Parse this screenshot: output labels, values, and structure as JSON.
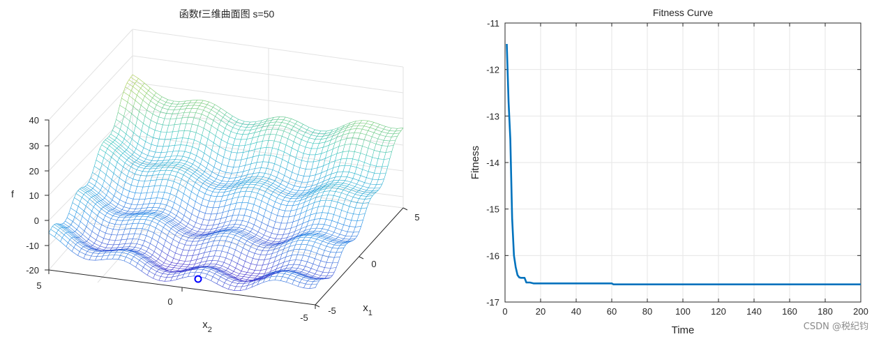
{
  "watermark": "CSDN @税纪钧",
  "chart_data": [
    {
      "type": "surface",
      "title": "函数f三维曲面图 s=50",
      "xlabel_main": "x",
      "xlabel_sub": "1",
      "ylabel_main": "x",
      "ylabel_sub": "2",
      "zlabel": "f",
      "x1_ticks": [
        "5",
        "0",
        "-5"
      ],
      "x2_ticks": [
        "5",
        "0",
        "-5"
      ],
      "z_ticks": [
        "40",
        "30",
        "20",
        "10",
        "0",
        "-10",
        "-20"
      ],
      "zlim": [
        -20,
        40
      ],
      "marker": "optimum (circle)"
    },
    {
      "type": "line",
      "title": "Fitness Curve",
      "xlabel": "Time",
      "ylabel": "Fitness",
      "xlim": [
        0,
        200
      ],
      "ylim": [
        -17,
        -11
      ],
      "xticks": [
        "0",
        "20",
        "40",
        "60",
        "80",
        "100",
        "120",
        "140",
        "160",
        "180",
        "200"
      ],
      "yticks": [
        "-11",
        "-12",
        "-13",
        "-14",
        "-15",
        "-16",
        "-17"
      ],
      "series": [
        {
          "name": "fitness",
          "color": "#0072BD",
          "x": [
            1,
            2,
            3,
            4,
            5,
            6,
            7,
            8,
            9,
            10,
            11,
            12,
            14,
            16,
            18,
            20,
            40,
            60,
            61,
            80,
            100,
            120,
            140,
            160,
            180,
            200
          ],
          "y": [
            -11.45,
            -12.7,
            -13.5,
            -15.2,
            -16.0,
            -16.25,
            -16.42,
            -16.47,
            -16.48,
            -16.48,
            -16.48,
            -16.58,
            -16.58,
            -16.6,
            -16.6,
            -16.6,
            -16.6,
            -16.6,
            -16.62,
            -16.62,
            -16.62,
            -16.62,
            -16.62,
            -16.62,
            -16.62,
            -16.62
          ]
        }
      ]
    }
  ]
}
